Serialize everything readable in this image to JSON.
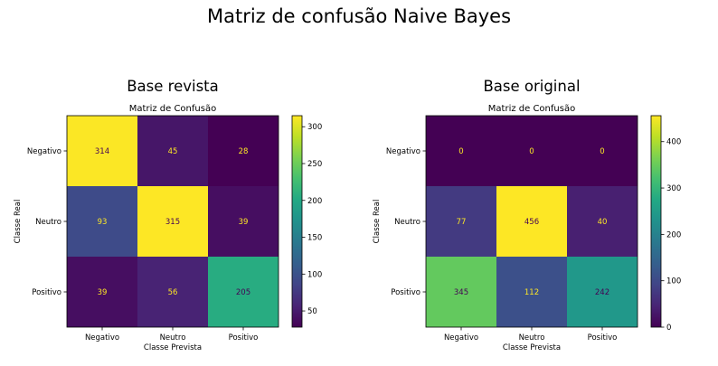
{
  "figure": {
    "title": "Matriz de confusão Naive Bayes"
  },
  "chart_data": [
    {
      "type": "heatmap",
      "panel_title": "Base revista",
      "title": "Matriz de Confusão",
      "xlabel": "Classe Prevista",
      "ylabel": "Classe Real",
      "x_categories": [
        "Negativo",
        "Neutro",
        "Positivo"
      ],
      "y_categories": [
        "Negativo",
        "Neutro",
        "Positivo"
      ],
      "values": [
        [
          314,
          45,
          28
        ],
        [
          93,
          315,
          39
        ],
        [
          39,
          56,
          205
        ]
      ],
      "colorbar": {
        "colormap": "viridis",
        "range": [
          28,
          315
        ],
        "ticks": [
          50,
          100,
          150,
          200,
          250,
          300
        ]
      }
    },
    {
      "type": "heatmap",
      "panel_title": "Base original",
      "title": "Matriz de Confusão",
      "xlabel": "Classe Prevista",
      "ylabel": "Classe Real",
      "x_categories": [
        "Negativo",
        "Neutro",
        "Positivo"
      ],
      "y_categories": [
        "Negativo",
        "Neutro",
        "Positivo"
      ],
      "values": [
        [
          0,
          0,
          0
        ],
        [
          77,
          456,
          40
        ],
        [
          345,
          112,
          242
        ]
      ],
      "colorbar": {
        "colormap": "viridis",
        "range": [
          0,
          456
        ],
        "ticks": [
          0,
          100,
          200,
          300,
          400
        ]
      }
    }
  ]
}
